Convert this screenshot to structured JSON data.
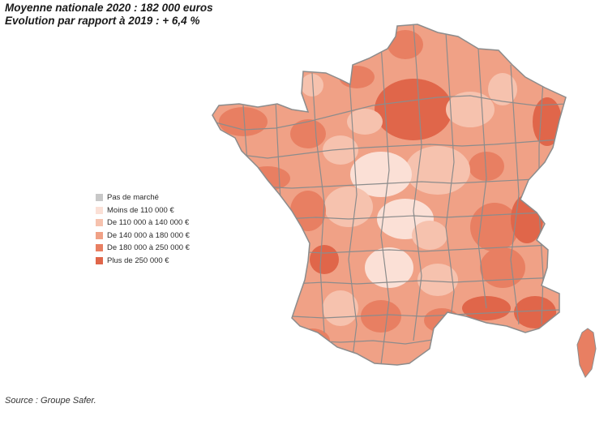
{
  "headline": {
    "line1": "Moyenne nationale 2020 : 182 000 euros",
    "line2": "Evolution par rapport à 2019 : + 6,4 %"
  },
  "legend": [
    {
      "label": "Pas de marché",
      "color": "#c8c8c8"
    },
    {
      "label": "Moins de 110 000 €",
      "color": "#fbe0d6"
    },
    {
      "label": "De 110 000 à 140 000 €",
      "color": "#f6c2ae"
    },
    {
      "label": "De 140 000 à 180 000 €",
      "color": "#f0a186"
    },
    {
      "label": "De 180 000 à 250 000 €",
      "color": "#e87f62"
    },
    {
      "label": "Plus de 250 000 €",
      "color": "#e0664a"
    }
  ],
  "map": {
    "region": "France",
    "border_color": "#8c8c8c"
  },
  "source": "Source : Groupe Safer."
}
